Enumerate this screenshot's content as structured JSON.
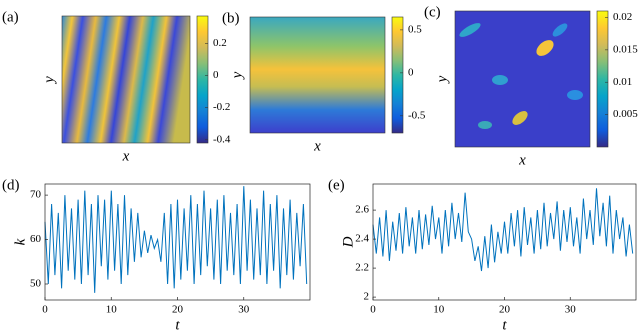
{
  "chart_data": [
    {
      "type": "heatmap",
      "label": "(a)",
      "xlabel": "x",
      "ylabel": "y",
      "clim": [
        -0.42,
        0.37
      ],
      "cticks": [
        -0.4,
        -0.2,
        0,
        0.2
      ]
    },
    {
      "type": "heatmap",
      "label": "(b)",
      "xlabel": "x",
      "ylabel": "y",
      "clim": [
        -0.7,
        0.65
      ],
      "cticks": [
        -0.5,
        0,
        0.5
      ]
    },
    {
      "type": "heatmap",
      "label": "(c)",
      "xlabel": "x",
      "ylabel": "y",
      "clim": [
        0,
        0.021
      ],
      "cticks": [
        0.005,
        0.01,
        0.015,
        0.02
      ]
    },
    {
      "type": "line",
      "label": "(d)",
      "xlabel": "t",
      "ylabel": "k",
      "color": "#0072bd",
      "xlim": [
        0,
        40
      ],
      "xticks": [
        0,
        10,
        20,
        30
      ],
      "ylim": [
        46.4,
        72.5
      ],
      "yticks": [
        50,
        60,
        70
      ],
      "x": [
        0,
        0.5,
        1,
        1.5,
        2,
        2.5,
        3,
        3.5,
        4,
        4.5,
        5,
        5.5,
        6,
        6.5,
        7,
        7.5,
        8,
        8.5,
        9,
        9.5,
        10,
        10.5,
        11,
        11.5,
        12,
        12.5,
        13,
        13.5,
        14,
        14.5,
        15,
        15.5,
        16,
        16.5,
        17,
        17.5,
        18,
        18.5,
        19,
        19.5,
        20,
        20.5,
        21,
        21.5,
        22,
        22.5,
        23,
        23.5,
        24,
        24.5,
        25,
        25.5,
        26,
        26.5,
        27,
        27.5,
        28,
        28.5,
        29,
        29.5,
        30,
        30.5,
        31,
        31.5,
        32,
        32.5,
        33,
        33.5,
        34,
        34.5,
        35,
        35.5,
        36,
        36.5,
        37,
        37.5,
        38,
        38.5,
        39,
        39.5
      ],
      "values": [
        64,
        50,
        68,
        52,
        66,
        49,
        70,
        53,
        67,
        51,
        69,
        50,
        71,
        52,
        68,
        48,
        70,
        54,
        69,
        51,
        71,
        53,
        68,
        50,
        70,
        52,
        67,
        55,
        66,
        56,
        62,
        57,
        61,
        58,
        60,
        55,
        66,
        50,
        68,
        49,
        69,
        51,
        67,
        53,
        70,
        50,
        68,
        52,
        71,
        54,
        67,
        51,
        69,
        50,
        70,
        53,
        66,
        52,
        68,
        50,
        72,
        53,
        69,
        51,
        67,
        52,
        71,
        50,
        68,
        53,
        70,
        49,
        67,
        52,
        69,
        51,
        66,
        54,
        68,
        50
      ]
    },
    {
      "type": "line",
      "label": "(e)",
      "xlabel": "t",
      "ylabel": "D",
      "color": "#0072bd",
      "xlim": [
        0,
        40
      ],
      "xticks": [
        0,
        10,
        20,
        30
      ],
      "ylim": [
        1.98,
        2.78
      ],
      "yticks": [
        2,
        2.2,
        2.4,
        2.6
      ],
      "x": [
        0,
        0.5,
        1,
        1.5,
        2,
        2.5,
        3,
        3.5,
        4,
        4.5,
        5,
        5.5,
        6,
        6.5,
        7,
        7.5,
        8,
        8.5,
        9,
        9.5,
        10,
        10.5,
        11,
        11.5,
        12,
        12.5,
        13,
        13.5,
        14,
        14.5,
        15,
        15.5,
        16,
        16.5,
        17,
        17.5,
        18,
        18.5,
        19,
        19.5,
        20,
        20.5,
        21,
        21.5,
        22,
        22.5,
        23,
        23.5,
        24,
        24.5,
        25,
        25.5,
        26,
        26.5,
        27,
        27.5,
        28,
        28.5,
        29,
        29.5,
        30,
        30.5,
        31,
        31.5,
        32,
        32.5,
        33,
        33.5,
        34,
        34.5,
        35,
        35.5,
        36,
        36.5,
        37,
        37.5,
        38,
        38.5,
        39,
        39.5
      ],
      "values": [
        2.5,
        2.3,
        2.55,
        2.28,
        2.6,
        2.25,
        2.52,
        2.32,
        2.58,
        2.3,
        2.62,
        2.35,
        2.55,
        2.3,
        2.6,
        2.33,
        2.57,
        2.36,
        2.63,
        2.4,
        2.55,
        2.3,
        2.6,
        2.35,
        2.65,
        2.4,
        2.58,
        2.38,
        2.72,
        2.45,
        2.4,
        2.25,
        2.35,
        2.18,
        2.42,
        2.2,
        2.5,
        2.24,
        2.45,
        2.3,
        2.52,
        2.3,
        2.58,
        2.35,
        2.6,
        2.28,
        2.62,
        2.36,
        2.55,
        2.3,
        2.6,
        2.33,
        2.65,
        2.35,
        2.58,
        2.4,
        2.66,
        2.32,
        2.6,
        2.38,
        2.62,
        2.35,
        2.55,
        2.3,
        2.68,
        2.4,
        2.6,
        2.36,
        2.75,
        2.42,
        2.65,
        2.35,
        2.7,
        2.3,
        2.6,
        2.4,
        2.55,
        2.28,
        2.5,
        2.3
      ]
    }
  ]
}
